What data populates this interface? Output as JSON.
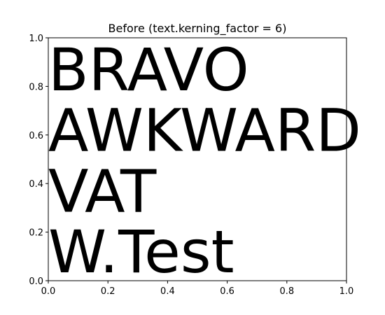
{
  "chart_data": {
    "type": "text",
    "title": "Before (text.kerning_factor = 6)",
    "xlabel": "",
    "ylabel": "",
    "xlim": [
      0.0,
      1.0
    ],
    "ylim": [
      0.0,
      1.0
    ],
    "x_ticks": [
      0.0,
      0.2,
      0.4,
      0.6,
      0.8,
      1.0
    ],
    "x_tick_labels": [
      "0.0",
      "0.2",
      "0.4",
      "0.6",
      "0.8",
      "1.0"
    ],
    "y_ticks": [
      0.0,
      0.2,
      0.4,
      0.6,
      0.8,
      1.0
    ],
    "y_tick_labels": [
      "0.0",
      "0.2",
      "0.4",
      "0.6",
      "0.8",
      "1.0"
    ],
    "grid": false,
    "annotations": [
      {
        "text": "BRAVO",
        "x": 0.0,
        "y": 0.75
      },
      {
        "text": "AWKWARD",
        "x": 0.0,
        "y": 0.5
      },
      {
        "text": "VAT",
        "x": 0.0,
        "y": 0.25
      },
      {
        "text": "W.Test",
        "x": 0.0,
        "y": 0.0
      }
    ],
    "colors": {
      "text": "#000000",
      "axes": "#000000",
      "background": "#ffffff"
    }
  }
}
